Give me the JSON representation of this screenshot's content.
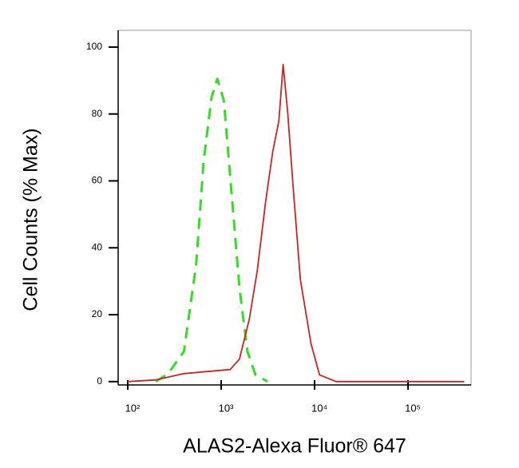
{
  "chart_data": {
    "type": "line",
    "x_label": "ALAS2-Alexa Fluor® 647",
    "y_label": "Cell Counts (% Max)",
    "log_x": true,
    "xlim": [
      79,
      473000
    ],
    "xticks": [
      {
        "value": 100,
        "label": "10²"
      },
      {
        "value": 1000,
        "label": "10³"
      },
      {
        "value": 10000,
        "label": "10⁴"
      },
      {
        "value": 100000,
        "label": "10⁵"
      }
    ],
    "ylim": [
      -1,
      105
    ],
    "yticks": [
      0,
      20,
      40,
      60,
      80,
      100
    ],
    "series": [
      {
        "color": "#33dd22",
        "dashed": true,
        "x": [
          200,
          270,
          400,
          540,
          650,
          790,
          910,
          1070,
          1270,
          1570,
          1910,
          2330,
          3150
        ],
        "values": [
          0,
          2.4,
          9,
          35,
          66,
          85,
          90.5,
          84,
          59,
          28,
          9,
          2,
          0
        ]
      },
      {
        "color": "#cc2222",
        "dashed": false,
        "x": [
          100,
          200,
          400,
          710,
          1250,
          1570,
          2000,
          2430,
          3000,
          3560,
          4150,
          4600,
          5150,
          5950,
          7050,
          9150,
          11300,
          17000,
          100000,
          400000
        ],
        "values": [
          0,
          0.5,
          2.4,
          3,
          3.6,
          6.7,
          18.6,
          33,
          54,
          68.6,
          78,
          94.8,
          80.5,
          56.7,
          30.5,
          11.4,
          2,
          0,
          0,
          0
        ]
      }
    ]
  }
}
